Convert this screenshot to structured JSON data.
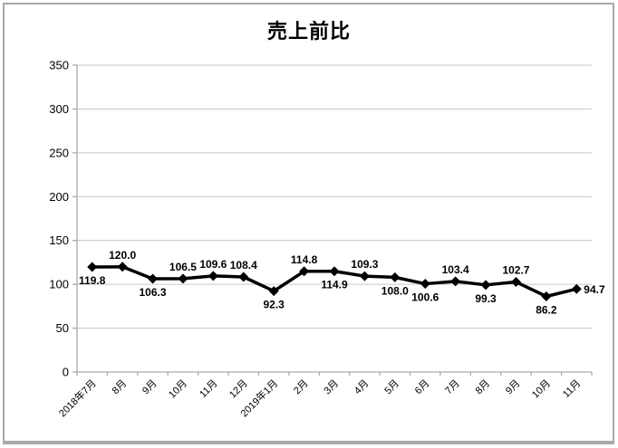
{
  "window": {
    "background_color": "#ffffff",
    "frame_border_color": "#a9a9a9"
  },
  "chart_data": {
    "type": "line",
    "title": "売上前比",
    "categories": [
      "2018年7月",
      "8月",
      "9月",
      "10月",
      "11月",
      "12月",
      "2019年1月",
      "2月",
      "3月",
      "4月",
      "5月",
      "6月",
      "7月",
      "8月",
      "9月",
      "10月",
      "11月"
    ],
    "series": [
      {
        "name": "売上前比",
        "values": [
          119.8,
          120.0,
          106.3,
          106.5,
          109.6,
          108.4,
          92.3,
          114.8,
          114.9,
          109.3,
          108.0,
          100.6,
          103.4,
          99.3,
          102.7,
          86.2,
          94.7
        ]
      }
    ],
    "data_label_positions": [
      "below",
      "above",
      "below",
      "above",
      "above",
      "above",
      "below",
      "above",
      "below",
      "above",
      "below",
      "below",
      "above",
      "below",
      "above",
      "below",
      "right"
    ],
    "data_label_decimals": 1,
    "xlabel": "",
    "ylabel": "",
    "ylim": [
      0,
      350
    ],
    "yticks": [
      0,
      50,
      100,
      150,
      200,
      250,
      300,
      350
    ],
    "grid": "horizontal",
    "legend": "none",
    "line_color": "#000000",
    "marker": "diamond",
    "marker_color": "#000000",
    "gridline_color": "#c6c6c6",
    "axis_color": "#ababab",
    "tick_label_color": "#000000",
    "data_label_color": "#000000"
  }
}
